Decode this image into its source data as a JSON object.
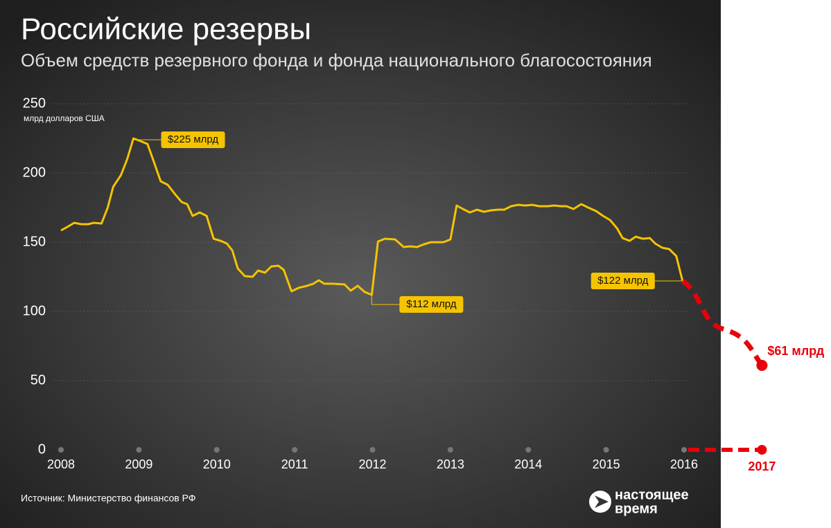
{
  "chart_data": {
    "type": "line",
    "title": "Российские резервы",
    "subtitle": "Объем средств резервного фонда и фонда национального благосостояния",
    "ylabel": "млрд долларов США",
    "source": "Источник: Министерство финансов РФ",
    "logo": [
      "настоящее",
      "время"
    ],
    "xlim": [
      2008,
      2016
    ],
    "xticks": [
      2008,
      2009,
      2010,
      2011,
      2012,
      2013,
      2014,
      2015,
      2016
    ],
    "ylim": [
      0,
      250
    ],
    "yticks": [
      0,
      50,
      100,
      150,
      200,
      250
    ],
    "grid": true,
    "series": [
      {
        "color": "#f5c400",
        "x": [
          2008.0,
          2008.08,
          2008.17,
          2008.26,
          2008.35,
          2008.42,
          2008.52,
          2008.6,
          2008.67,
          2008.77,
          2008.85,
          2008.93,
          2009.0,
          2009.11,
          2009.19,
          2009.28,
          2009.37,
          2009.46,
          2009.55,
          2009.62,
          2009.69,
          2009.78,
          2009.87,
          2009.96,
          2010.05,
          2010.13,
          2010.2,
          2010.27,
          2010.36,
          2010.46,
          2010.53,
          2010.62,
          2010.7,
          2010.79,
          2010.86,
          2010.96,
          2011.05,
          2011.16,
          2011.24,
          2011.31,
          2011.38,
          2011.49,
          2011.64,
          2011.72,
          2011.81,
          2011.9,
          2011.99,
          2012.07,
          2012.16,
          2012.29,
          2012.4,
          2012.48,
          2012.57,
          2012.66,
          2012.75,
          2012.91,
          2013.0,
          2013.08,
          2013.16,
          2013.25,
          2013.34,
          2013.43,
          2013.52,
          2013.61,
          2013.69,
          2013.78,
          2013.87,
          2013.96,
          2014.05,
          2014.14,
          2014.25,
          2014.33,
          2014.42,
          2014.49,
          2014.58,
          2014.68,
          2014.77,
          2014.87,
          2014.96,
          2015.05,
          2015.14,
          2015.21,
          2015.3,
          2015.38,
          2015.47,
          2015.56,
          2015.63,
          2015.72,
          2015.81,
          2015.9,
          2015.98
        ],
        "values": [
          158.5,
          161,
          164,
          163,
          163,
          164,
          163.5,
          175,
          190,
          198.5,
          210,
          225,
          223.5,
          221,
          208.5,
          194,
          191.5,
          185,
          179,
          177.5,
          169,
          171.5,
          169,
          152.5,
          151,
          149,
          144,
          131,
          125.5,
          125,
          129.5,
          128,
          132.5,
          133,
          130,
          114.5,
          117,
          118.5,
          120,
          122.5,
          120,
          120,
          119.5,
          115,
          118.5,
          114,
          112,
          150.5,
          152.5,
          152,
          146.5,
          147,
          146.5,
          148.5,
          150,
          150,
          152,
          176.5,
          174,
          171.5,
          173.5,
          172,
          173,
          173.5,
          173.5,
          176,
          177,
          176.5,
          177,
          176,
          176,
          176.5,
          176,
          176,
          174,
          177.5,
          175,
          172.5,
          169,
          166,
          160,
          153,
          151,
          154,
          152.5,
          153,
          149,
          146,
          145,
          140,
          122
        ]
      }
    ],
    "annotations": [
      {
        "x": 2008.93,
        "y": 225,
        "label": "$225 млрд",
        "side": "right"
      },
      {
        "x": 2011.99,
        "y": 112,
        "label": "$112 млрд",
        "side": "right"
      },
      {
        "x": 2015.98,
        "y": 122,
        "label": "$122 млрд",
        "side": "left"
      }
    ],
    "projection": {
      "x": [
        2015.98,
        2017
      ],
      "values": [
        122,
        61
      ],
      "value_label": "$61 млрд",
      "color": "#e8000b",
      "xtick": 2017
    }
  }
}
